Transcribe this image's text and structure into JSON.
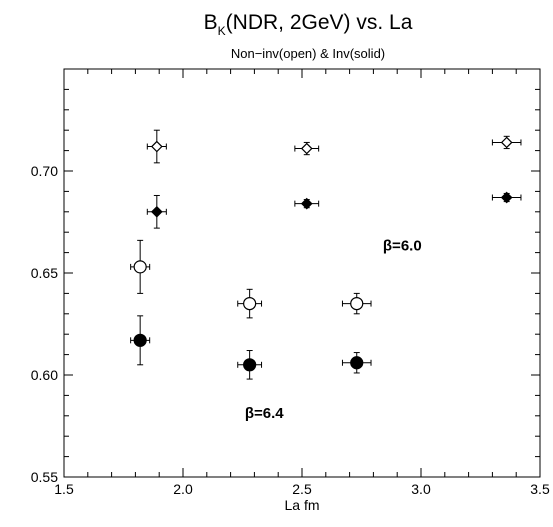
{
  "chart_data": {
    "type": "scatter",
    "title": "B(NDR, 2GeV) vs. La",
    "title_parts": {
      "pre": "B",
      "sub": "K",
      "post": "(NDR, 2GeV) vs. La"
    },
    "subtitle": "Non−inv(open) & Inv(solid)",
    "xlabel": "La  fm",
    "ylabel": "",
    "xlim": [
      1.5,
      3.5
    ],
    "ylim": [
      0.55,
      0.75
    ],
    "x_ticks": [
      1.5,
      2.0,
      2.5,
      3.0,
      3.5
    ],
    "x_tick_labels": [
      "1.5",
      "2.0",
      "2.5",
      "3.0",
      "3.5"
    ],
    "y_ticks": [
      0.55,
      0.6,
      0.65,
      0.7
    ],
    "y_tick_labels": [
      "0.55",
      "0.60",
      "0.65",
      "0.70"
    ],
    "grid": false,
    "legend": "none",
    "annotations": [
      {
        "text": "β=6.0",
        "x": 2.84,
        "y": 0.661
      },
      {
        "text": "β=6.4",
        "x": 2.26,
        "y": 0.579
      }
    ],
    "series": [
      {
        "marker": "open-diamond",
        "points": [
          {
            "x": 1.89,
            "y": 0.712,
            "xerr": 0.04,
            "yerr": 0.008
          },
          {
            "x": 2.52,
            "y": 0.711,
            "xerr": 0.05,
            "yerr": 0.003
          },
          {
            "x": 3.36,
            "y": 0.714,
            "xerr": 0.06,
            "yerr": 0.003
          }
        ]
      },
      {
        "marker": "solid-diamond",
        "points": [
          {
            "x": 1.89,
            "y": 0.68,
            "xerr": 0.04,
            "yerr": 0.008
          },
          {
            "x": 2.52,
            "y": 0.684,
            "xerr": 0.05,
            "yerr": 0.002
          },
          {
            "x": 3.36,
            "y": 0.687,
            "xerr": 0.06,
            "yerr": 0.002
          }
        ]
      },
      {
        "marker": "open-circle",
        "points": [
          {
            "x": 1.82,
            "y": 0.653,
            "xerr": 0.04,
            "yerr": 0.013
          },
          {
            "x": 2.28,
            "y": 0.635,
            "xerr": 0.05,
            "yerr": 0.007
          },
          {
            "x": 2.73,
            "y": 0.635,
            "xerr": 0.06,
            "yerr": 0.005
          }
        ]
      },
      {
        "marker": "solid-circle",
        "points": [
          {
            "x": 1.82,
            "y": 0.617,
            "xerr": 0.04,
            "yerr": 0.012
          },
          {
            "x": 2.28,
            "y": 0.605,
            "xerr": 0.05,
            "yerr": 0.007
          },
          {
            "x": 2.73,
            "y": 0.606,
            "xerr": 0.06,
            "yerr": 0.005
          }
        ]
      }
    ]
  }
}
